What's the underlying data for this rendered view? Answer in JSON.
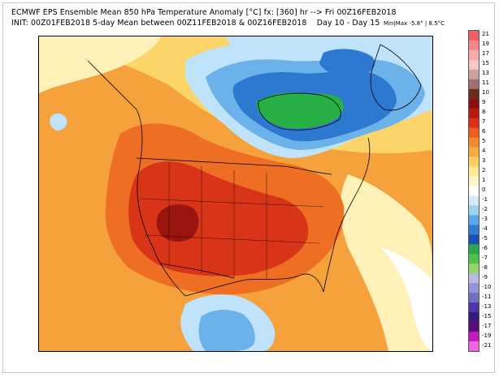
{
  "header": {
    "line1": "ECMWF EPS Ensemble Mean 850 hPa Temperature Anomaly [°C] fx: [360] hr --> Fri 00Z16FEB2018",
    "line2": "INIT: 00Z01FEB2018 5-day Mean between 00Z11FEB2018 & 00Z16FEB2018    Day 10 - Day 15",
    "minmax": "Min|Max -5.8° | 8.5°C"
  },
  "colorbar": {
    "labels": [
      "21",
      "19",
      "17",
      "15",
      "13",
      "11",
      "10",
      "9",
      "8",
      "7",
      "6",
      "5",
      "4",
      "3",
      "2",
      "1",
      "0",
      "-1",
      "-2",
      "-3",
      "-4",
      "-5",
      "-6",
      "-7",
      "-8",
      "-9",
      "-10",
      "-11",
      "-13",
      "-15",
      "-17",
      "-19",
      "-21"
    ],
    "colors": [
      "#f06060",
      "#f48888",
      "#f7aaaa",
      "#f9c6c6",
      "#cfa0a0",
      "#a07070",
      "#6e2b1a",
      "#8a1010",
      "#b81a0e",
      "#d93218",
      "#ee5c20",
      "#f58a30",
      "#f9ad40",
      "#fccf60",
      "#feea96",
      "#fff6c8",
      "#ffffff",
      "#d2ecfa",
      "#9ed2f2",
      "#5aa9e8",
      "#2e7fd2",
      "#1b4fb8",
      "#2aa84a",
      "#52c04a",
      "#93d66c",
      "#b7b7e8",
      "#9393d6",
      "#7070c2",
      "#5034aa",
      "#3a1680",
      "#5c0c7a",
      "#c01ac0",
      "#ee66e8"
    ]
  },
  "map": {
    "colors": {
      "neutral": "#ffffff",
      "light_warm": "#fff1b8",
      "yellow": "#fcd56a",
      "orange": "#f6a23c",
      "deep_orange": "#ee6e24",
      "red": "#d83418",
      "dark_red": "#9a1410",
      "cool_light": "#bfe3fa",
      "cool_mid": "#6bb2ea",
      "cool_deep": "#2d78d0",
      "green": "#27b046"
    }
  }
}
